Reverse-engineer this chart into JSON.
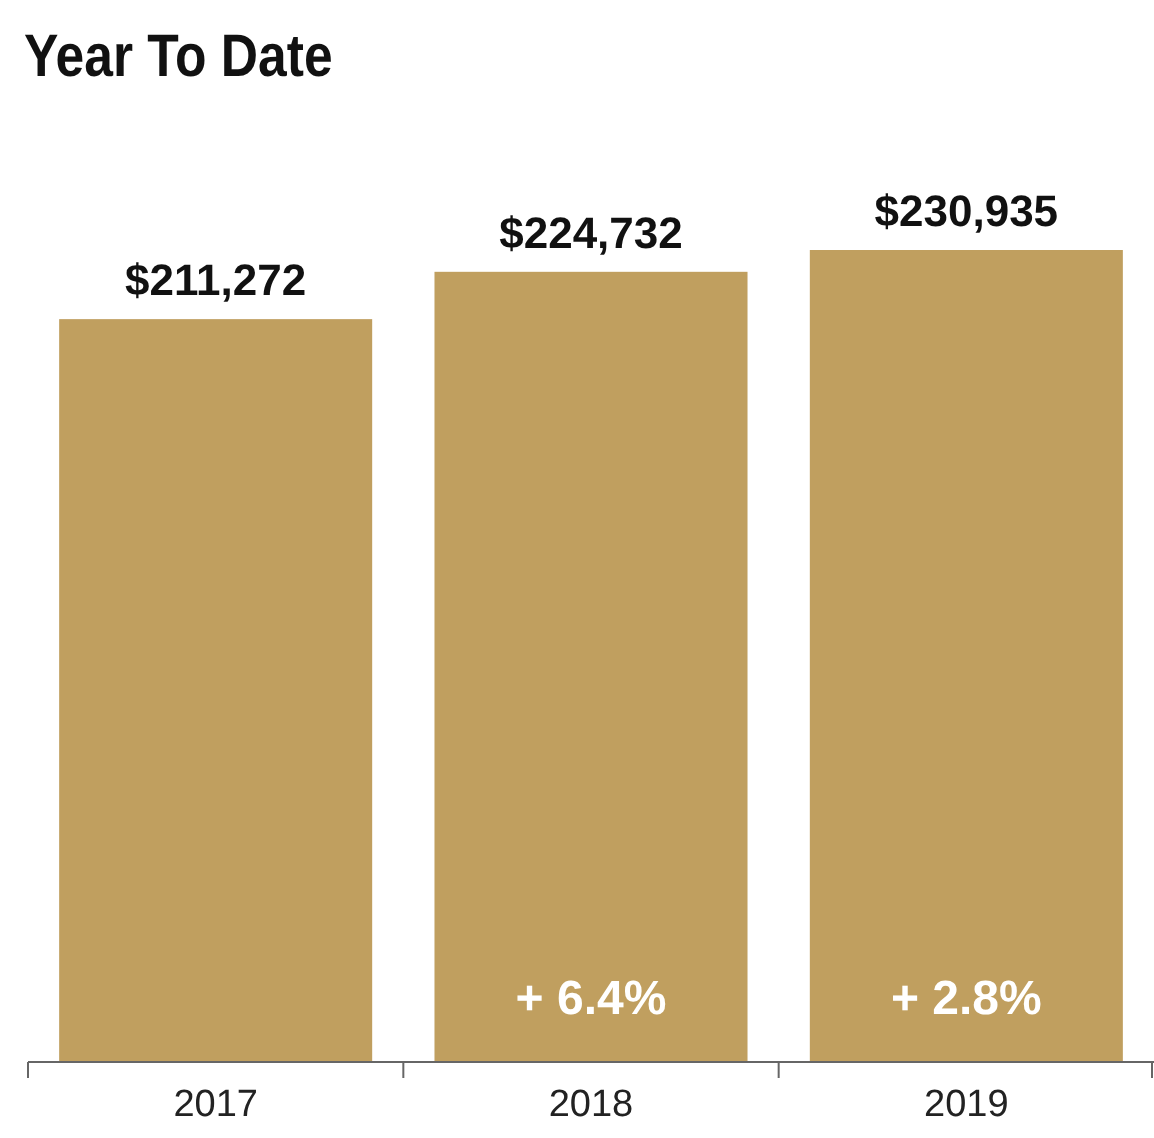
{
  "chart_data": {
    "type": "bar",
    "title": "Year To Date",
    "categories": [
      "2017",
      "2018",
      "2019"
    ],
    "values": [
      211272,
      224732,
      230935
    ],
    "value_labels": [
      "$211,272",
      "$224,732",
      "$230,935"
    ],
    "color": "#c09f5f",
    "annotations": [
      "+ 6.4%",
      "+ 2.8%"
    ]
  }
}
